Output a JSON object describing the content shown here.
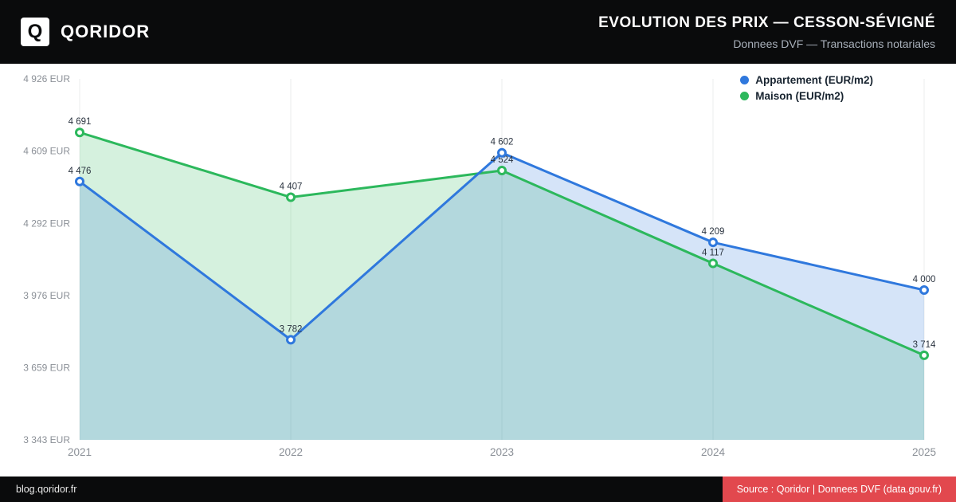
{
  "header": {
    "logo_letter": "Q",
    "brand": "QORIDOR",
    "title": "EVOLUTION DES PRIX — CESSON-SÉVIGNÉ",
    "subtitle": "Donnees DVF — Transactions notariales"
  },
  "chart_data": {
    "type": "line",
    "title": "Evolution des prix — Cesson-Sévigné",
    "x": [
      2021,
      2022,
      2023,
      2024,
      2025
    ],
    "series": [
      {
        "name": "Appartement (EUR/m2)",
        "color": "#2f78dd",
        "fill": "rgba(47,120,221,0.20)",
        "values": [
          4476,
          3782,
          4602,
          4209,
          4000
        ]
      },
      {
        "name": "Maison (EUR/m2)",
        "color": "#2cb85c",
        "fill": "rgba(44,184,92,0.20)",
        "values": [
          4691,
          4407,
          4524,
          4117,
          3714
        ]
      }
    ],
    "y_ticks": [
      4926,
      4609,
      4292,
      3976,
      3659,
      3343
    ],
    "y_unit": "EUR",
    "ylim": [
      3343,
      4926
    ],
    "grid": "vertical",
    "legend_position": "top-right"
  },
  "footer": {
    "site": "blog.qoridor.fr",
    "source": "Source : Qoridor | Donnees DVF (data.gouv.fr)",
    "source_bg": "#e2484e"
  }
}
